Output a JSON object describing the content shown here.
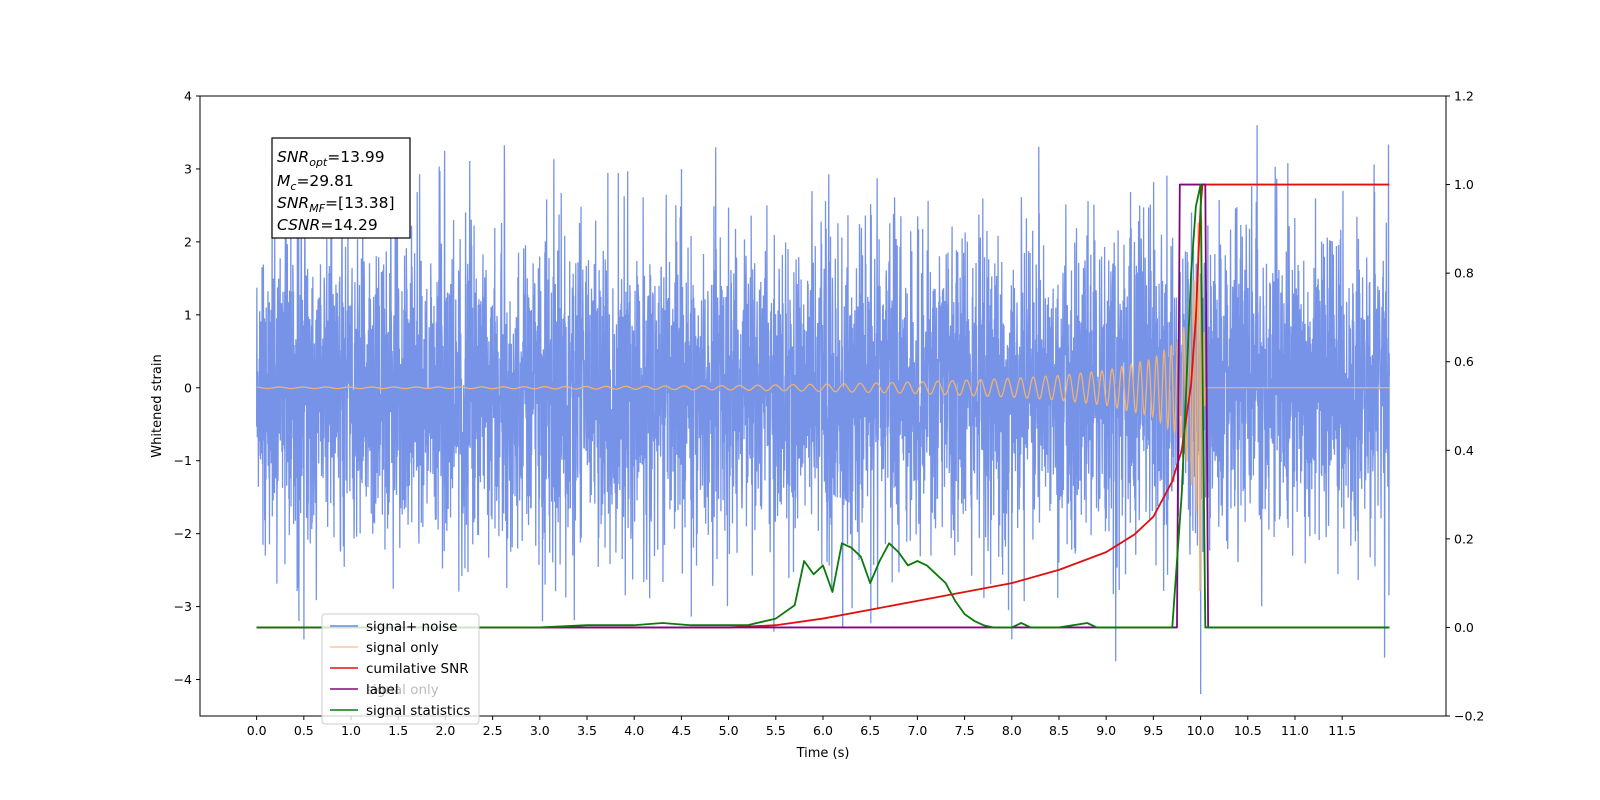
{
  "chart_data": {
    "type": "line",
    "title": "",
    "xlabel": "Time (s)",
    "ylabel": "Whitened strain",
    "y2label": "",
    "xlim": [
      -0.6,
      12.6
    ],
    "ylim": [
      -4.5,
      4
    ],
    "y2lim": [
      -0.2,
      1.2
    ],
    "grid": false,
    "x_ticks": [
      "0.0",
      "0.5",
      "1.0",
      "1.5",
      "2.0",
      "2.5",
      "3.0",
      "3.5",
      "4.0",
      "4.5",
      "5.0",
      "5.5",
      "6.0",
      "6.5",
      "7.0",
      "7.5",
      "8.0",
      "8.5",
      "9.0",
      "9.5",
      "10.0",
      "10.5",
      "11.0",
      "11.5"
    ],
    "y_ticks": [
      "4",
      "3",
      "2",
      "1",
      "0",
      "−1",
      "−2",
      "−3",
      "−4"
    ],
    "y2_ticks": [
      "1.2",
      "1.0",
      "0.8",
      "0.6",
      "0.4",
      "0.2",
      "0.0",
      "−0.2"
    ],
    "legend_position": "lower-left",
    "annotation": {
      "snr_opt_base": "SNR",
      "snr_opt_sub": "opt",
      "snr_opt_val": "=13.99",
      "mc_base": "M",
      "mc_sub": "c",
      "mc_val": "=29.81",
      "snr_mf_base": "SNR",
      "snr_mf_sub": "MF",
      "snr_mf_val": "=[13.38]",
      "csnr_base": "CSNR",
      "csnr_val": "=14.29"
    },
    "series": [
      {
        "name": "signal+ noise",
        "axis": "left",
        "color": "#6a8ae6",
        "description": "whitened strain noise, approx Gaussian sigma ~1.1, spanning x 0 to 12",
        "x_range": [
          0.0,
          12.0
        ],
        "extremes": [
          [
            10.6,
            3.6
          ],
          [
            9.1,
            -3.75
          ],
          [
            10.0,
            -4.2
          ],
          [
            11.95,
            -3.7
          ],
          [
            0.5,
            -3.45
          ],
          [
            8.0,
            -3.45
          ]
        ]
      },
      {
        "name": "signal only",
        "axis": "left",
        "color": "#f5b36b",
        "description": "chirp with growing amplitude merging near x=10",
        "x": [
          0.0,
          2.0,
          4.0,
          5.0,
          6.0,
          7.0,
          8.0,
          8.5,
          9.0,
          9.5,
          9.8,
          9.95,
          10.0,
          10.05,
          12.0
        ],
        "envelope": [
          0.01,
          0.01,
          0.02,
          0.03,
          0.05,
          0.08,
          0.13,
          0.17,
          0.24,
          0.4,
          0.7,
          1.6,
          3.05,
          0.0,
          0.0
        ]
      },
      {
        "name": "cumilative SNR",
        "axis": "right",
        "color": "#e01010",
        "x": [
          0.0,
          4.0,
          5.0,
          5.5,
          6.0,
          6.5,
          7.0,
          7.5,
          8.0,
          8.5,
          9.0,
          9.3,
          9.5,
          9.7,
          9.8,
          9.9,
          9.95,
          10.0,
          10.02,
          12.0
        ],
        "y": [
          0.0,
          0.0,
          0.0,
          0.005,
          0.02,
          0.04,
          0.06,
          0.08,
          0.1,
          0.13,
          0.17,
          0.21,
          0.25,
          0.33,
          0.4,
          0.55,
          0.7,
          0.95,
          1.0,
          1.0
        ]
      },
      {
        "name": "label",
        "axis": "right",
        "color": "#7b0a7b",
        "x": [
          0.0,
          9.75,
          9.78,
          10.05,
          10.08,
          12.0
        ],
        "y": [
          0.0,
          0.0,
          1.0,
          1.0,
          0.0,
          0.0
        ]
      },
      {
        "name": "signal only",
        "axis": "right",
        "color": "#ffffff",
        "legend_only": true,
        "description": "legend entry partially hidden behind another legend entry"
      },
      {
        "name": "signal statistics",
        "axis": "right",
        "color": "#0a7a0a",
        "x": [
          0.0,
          3.0,
          3.5,
          4.0,
          4.3,
          4.6,
          5.0,
          5.2,
          5.5,
          5.7,
          5.8,
          5.9,
          6.0,
          6.1,
          6.2,
          6.3,
          6.4,
          6.5,
          6.6,
          6.7,
          6.8,
          6.9,
          7.0,
          7.1,
          7.2,
          7.3,
          7.4,
          7.5,
          7.6,
          7.7,
          7.8,
          8.0,
          8.1,
          8.2,
          8.5,
          8.8,
          8.9,
          9.0,
          9.5,
          9.7,
          9.8,
          9.9,
          9.95,
          10.0,
          10.05,
          12.0
        ],
        "y": [
          0.0,
          0.0,
          0.005,
          0.005,
          0.01,
          0.005,
          0.005,
          0.005,
          0.02,
          0.05,
          0.15,
          0.12,
          0.14,
          0.08,
          0.19,
          0.18,
          0.16,
          0.1,
          0.15,
          0.19,
          0.17,
          0.14,
          0.15,
          0.14,
          0.12,
          0.1,
          0.06,
          0.03,
          0.015,
          0.005,
          0.0,
          0.0,
          0.01,
          0.0,
          0.0,
          0.01,
          0.0,
          0.0,
          0.0,
          0.0,
          0.3,
          0.8,
          0.95,
          1.0,
          0.0,
          0.0
        ]
      }
    ]
  }
}
